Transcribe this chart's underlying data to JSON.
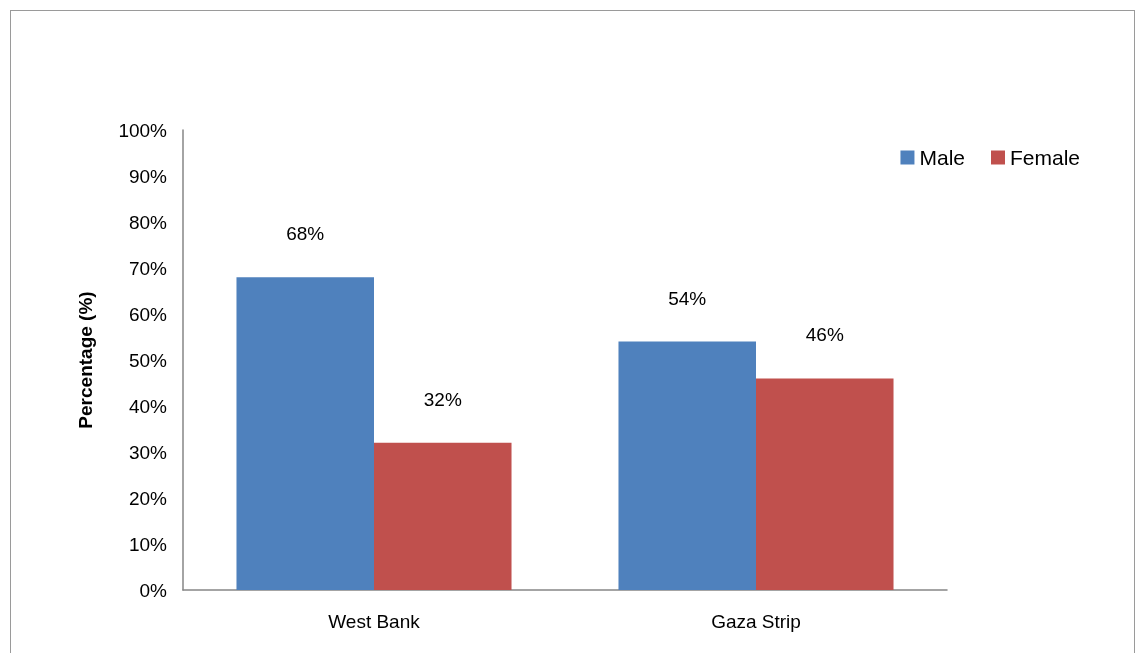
{
  "chart_data": {
    "type": "bar",
    "ylabel": "Percentage (%)",
    "categories": [
      "West Bank",
      "Gaza Strip"
    ],
    "series": [
      {
        "name": "Male",
        "color": "#4f81bd",
        "values": [
          68,
          54
        ],
        "value_labels": [
          "68%",
          "54%"
        ]
      },
      {
        "name": "Female",
        "color": "#c0504d",
        "values": [
          32,
          46
        ],
        "value_labels": [
          "32%",
          "46%"
        ]
      }
    ],
    "ylim": [
      0,
      100
    ],
    "yticks": [
      {
        "value": 0,
        "label": "0%"
      },
      {
        "value": 10,
        "label": "10%"
      },
      {
        "value": 20,
        "label": "20%"
      },
      {
        "value": 30,
        "label": "30%"
      },
      {
        "value": 40,
        "label": "40%"
      },
      {
        "value": 50,
        "label": "50%"
      },
      {
        "value": 60,
        "label": "60%"
      },
      {
        "value": 70,
        "label": "70%"
      },
      {
        "value": 80,
        "label": "80%"
      },
      {
        "value": 90,
        "label": "90%"
      },
      {
        "value": 100,
        "label": "100%"
      }
    ],
    "grid": false,
    "legend": "top right"
  }
}
